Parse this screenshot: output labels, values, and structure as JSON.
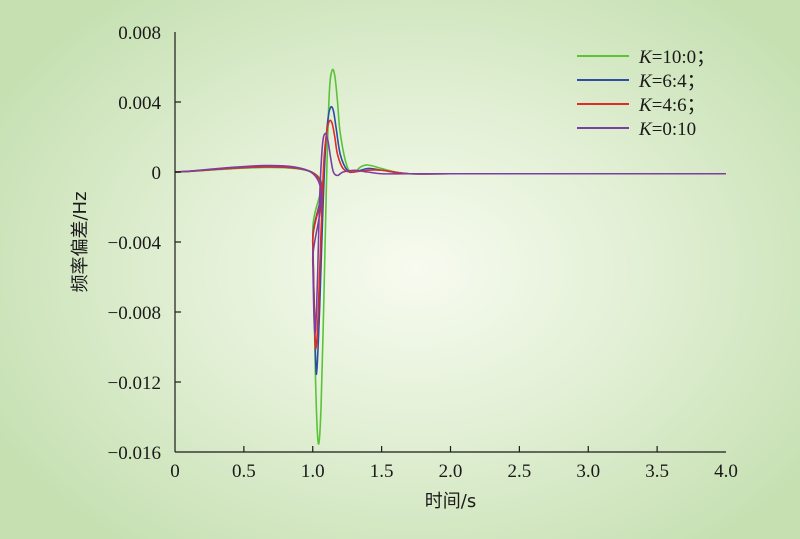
{
  "chart_data": {
    "type": "line",
    "title": "",
    "xlabel": "时间/s",
    "ylabel": "频率偏差/Hz",
    "xlim": [
      0,
      4.0
    ],
    "ylim": [
      -0.016,
      0.008
    ],
    "xticks": [
      "0",
      "0.5",
      "1.0",
      "1.5",
      "2.0",
      "2.5",
      "3.0",
      "3.5",
      "4.0"
    ],
    "yticks": [
      "0.008",
      "0.004",
      "0",
      "−0.004",
      "−0.008",
      "−0.012",
      "−0.016"
    ],
    "legend_position": "top-right",
    "grid": false,
    "series": [
      {
        "name_prefix": "K",
        "name_suffix": "=10:0；",
        "color": "#5cc23a",
        "x": [
          0,
          0.99,
          1.0,
          1.02,
          1.04,
          1.06,
          1.08,
          1.1,
          1.12,
          1.14,
          1.16,
          1.18,
          1.2,
          1.25,
          1.3,
          1.35,
          1.4,
          1.5,
          1.6,
          1.7,
          2.0,
          3.0,
          4.0
        ],
        "y": [
          0,
          0,
          -0.0035,
          -0.0118,
          -0.0155,
          -0.0135,
          -0.0075,
          -0.0005,
          0.0045,
          0.0058,
          0.0055,
          0.004,
          0.0022,
          0.0003,
          0.0,
          0.0003,
          0.0004,
          0.0002,
          0.0,
          -0.0001,
          -0.0001,
          -0.0001,
          -0.0001
        ]
      },
      {
        "name_prefix": "K",
        "name_suffix": "=6:4；",
        "color": "#2c4ea3",
        "x": [
          0,
          0.99,
          1.0,
          1.02,
          1.03,
          1.05,
          1.07,
          1.09,
          1.11,
          1.13,
          1.15,
          1.17,
          1.2,
          1.25,
          1.3,
          1.4,
          1.5,
          1.7,
          2.0,
          3.0,
          4.0
        ],
        "y": [
          0,
          0,
          -0.004,
          -0.0105,
          -0.0113,
          -0.0078,
          -0.003,
          0.001,
          0.003,
          0.0037,
          0.0035,
          0.0025,
          0.001,
          0.0001,
          0.0,
          0.0002,
          0.0001,
          -0.0001,
          -0.0001,
          -0.0001,
          -0.0001
        ]
      },
      {
        "name_prefix": "K",
        "name_suffix": "=4:6；",
        "color": "#e02b26",
        "x": [
          0,
          0.99,
          1.0,
          1.015,
          1.025,
          1.04,
          1.06,
          1.08,
          1.1,
          1.12,
          1.14,
          1.16,
          1.18,
          1.22,
          1.28,
          1.4,
          1.5,
          1.7,
          2.0,
          3.0,
          4.0
        ],
        "y": [
          0,
          0,
          -0.004,
          -0.0092,
          -0.01,
          -0.008,
          -0.0035,
          0.0005,
          0.0022,
          0.0029,
          0.0028,
          0.002,
          0.001,
          0.0002,
          0.0,
          0.0001,
          0.0001,
          -0.0001,
          -0.0001,
          -0.0001,
          -0.0001
        ]
      },
      {
        "name_prefix": "K",
        "name_suffix": "=0:10",
        "color": "#7c3fa1",
        "x": [
          0,
          0.985,
          1.0,
          1.01,
          1.02,
          1.035,
          1.05,
          1.07,
          1.09,
          1.11,
          1.13,
          1.15,
          1.18,
          1.22,
          1.3,
          1.4,
          1.5,
          1.7,
          2.0,
          3.0,
          4.0
        ],
        "y": [
          0,
          0,
          -0.005,
          -0.0085,
          -0.009,
          -0.006,
          -0.0015,
          0.0015,
          0.0022,
          0.0018,
          0.0008,
          0.0,
          -0.0002,
          0.0,
          0.0001,
          0.0,
          -0.0001,
          -0.0001,
          -0.0001,
          -0.0001,
          -0.0001
        ]
      }
    ]
  }
}
